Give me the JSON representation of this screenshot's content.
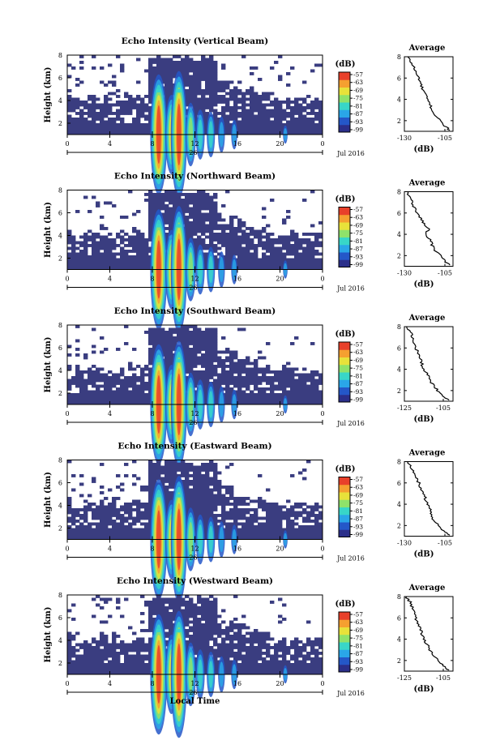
{
  "chart_data": [
    {
      "type": "heatmap",
      "title": "Echo Intensity (Vertical Beam)",
      "ylabel": "Height (km)",
      "xlim": [
        0,
        24
      ],
      "ylim": [
        1,
        8
      ],
      "x_ticks": [
        "0",
        "4",
        "8",
        "12",
        "16",
        "20",
        "0"
      ],
      "y_ticks": [
        "2",
        "4",
        "6",
        "8"
      ],
      "date_label": "26",
      "month_label": "Jul 2016",
      "colorbar": {
        "label": "(dB)",
        "ticks": [
          "-57",
          "-63",
          "-69",
          "-75",
          "-81",
          "-87",
          "-93",
          "-99"
        ]
      },
      "average_profile": {
        "title": "Average",
        "xlabel": "(dB)",
        "x_ticks": [
          "-130",
          "-105"
        ],
        "y_ticks": [
          "2",
          "4",
          "6",
          "8"
        ],
        "xlim": [
          -130,
          -100
        ],
        "points": [
          [
            -128,
            8
          ],
          [
            -126,
            7.5
          ],
          [
            -124,
            7
          ],
          [
            -123,
            6.5
          ],
          [
            -121,
            6
          ],
          [
            -120,
            5.5
          ],
          [
            -119,
            5
          ],
          [
            -117,
            4.5
          ],
          [
            -116,
            4
          ],
          [
            -114,
            3.5
          ],
          [
            -113,
            3
          ],
          [
            -111,
            2.5
          ],
          [
            -108,
            2
          ],
          [
            -105,
            1.5
          ],
          [
            -102,
            1.1
          ]
        ]
      }
    },
    {
      "type": "heatmap",
      "title": "Echo Intensity (Northward Beam)",
      "ylabel": "Height (km)",
      "xlim": [
        0,
        24
      ],
      "ylim": [
        1,
        8
      ],
      "x_ticks": [
        "0",
        "4",
        "8",
        "12",
        "16",
        "20",
        "0"
      ],
      "y_ticks": [
        "2",
        "4",
        "6",
        "8"
      ],
      "date_label": "26",
      "month_label": "Jul 2016",
      "colorbar": {
        "label": "(dB)",
        "ticks": [
          "-57",
          "-63",
          "-69",
          "-75",
          "-81",
          "-87",
          "-93",
          "-99"
        ]
      },
      "average_profile": {
        "title": "Average",
        "xlabel": "(dB)",
        "x_ticks": [
          "-130",
          "-105"
        ],
        "y_ticks": [
          "2",
          "4",
          "6",
          "8"
        ],
        "xlim": [
          -130,
          -100
        ],
        "points": [
          [
            -128,
            8
          ],
          [
            -127,
            7.5
          ],
          [
            -125,
            7
          ],
          [
            -124,
            6.5
          ],
          [
            -122,
            6
          ],
          [
            -120,
            5.5
          ],
          [
            -118,
            5
          ],
          [
            -115,
            4.5
          ],
          [
            -117,
            4
          ],
          [
            -114,
            3.5
          ],
          [
            -113,
            3
          ],
          [
            -111,
            2.5
          ],
          [
            -108,
            2
          ],
          [
            -105,
            1.5
          ],
          [
            -102,
            1.1
          ]
        ]
      }
    },
    {
      "type": "heatmap",
      "title": "Echo Intensity (Southward Beam)",
      "ylabel": "Height (km)",
      "xlim": [
        0,
        24
      ],
      "ylim": [
        1,
        8
      ],
      "x_ticks": [
        "0",
        "4",
        "8",
        "12",
        "16",
        "20",
        "0"
      ],
      "y_ticks": [
        "2",
        "4",
        "6",
        "8"
      ],
      "date_label": "26",
      "month_label": "Jul 2016",
      "colorbar": {
        "label": "(dB)",
        "ticks": [
          "-57",
          "-63",
          "-69",
          "-75",
          "-81",
          "-87",
          "-93",
          "-99"
        ]
      },
      "average_profile": {
        "title": "Average",
        "xlabel": "(dB)",
        "x_ticks": [
          "-125",
          "-105"
        ],
        "y_ticks": [
          "2",
          "4",
          "6",
          "8"
        ],
        "xlim": [
          -125,
          -100
        ],
        "points": [
          [
            -124,
            8
          ],
          [
            -122,
            7.5
          ],
          [
            -121,
            7
          ],
          [
            -120,
            6.5
          ],
          [
            -119,
            6
          ],
          [
            -118,
            5.5
          ],
          [
            -117,
            5
          ],
          [
            -116,
            4.5
          ],
          [
            -115,
            4
          ],
          [
            -113,
            3.5
          ],
          [
            -112,
            3
          ],
          [
            -110,
            2.5
          ],
          [
            -108,
            2
          ],
          [
            -105,
            1.5
          ],
          [
            -102,
            1.1
          ]
        ]
      }
    },
    {
      "type": "heatmap",
      "title": "Echo Intensity (Eastward Beam)",
      "ylabel": "Height (km)",
      "xlim": [
        0,
        24
      ],
      "ylim": [
        1,
        8
      ],
      "x_ticks": [
        "0",
        "4",
        "8",
        "12",
        "16",
        "20",
        "0"
      ],
      "y_ticks": [
        "2",
        "4",
        "6",
        "8"
      ],
      "date_label": "26",
      "month_label": "Jul 2016",
      "colorbar": {
        "label": "(dB)",
        "ticks": [
          "-57",
          "-63",
          "-69",
          "-75",
          "-81",
          "-87",
          "-93",
          "-99"
        ]
      },
      "average_profile": {
        "title": "Average",
        "xlabel": "(dB)",
        "x_ticks": [
          "-130",
          "-105"
        ],
        "y_ticks": [
          "2",
          "4",
          "6",
          "8"
        ],
        "xlim": [
          -130,
          -100
        ],
        "points": [
          [
            -128,
            8
          ],
          [
            -126,
            7.5
          ],
          [
            -124,
            7
          ],
          [
            -123,
            6.5
          ],
          [
            -121,
            6
          ],
          [
            -120,
            5.5
          ],
          [
            -118,
            5
          ],
          [
            -117,
            4.5
          ],
          [
            -116,
            4
          ],
          [
            -114,
            3.5
          ],
          [
            -113,
            3
          ],
          [
            -112,
            2.5
          ],
          [
            -109,
            2
          ],
          [
            -106,
            1.5
          ],
          [
            -102,
            1.1
          ]
        ]
      }
    },
    {
      "type": "heatmap",
      "title": "Echo Intensity (Westward Beam)",
      "ylabel": "Height (km)",
      "xlim": [
        0,
        24
      ],
      "ylim": [
        1,
        8
      ],
      "x_ticks": [
        "0",
        "4",
        "8",
        "12",
        "16",
        "20",
        "0"
      ],
      "y_ticks": [
        "2",
        "4",
        "6",
        "8"
      ],
      "date_label": "26",
      "month_label": "Jul 2016",
      "xlabel": "Local Time",
      "colorbar": {
        "label": "(dB)",
        "ticks": [
          "-57",
          "-63",
          "-69",
          "-75",
          "-81",
          "-87",
          "-93",
          "-99"
        ]
      },
      "average_profile": {
        "title": "Average",
        "xlabel": "(dB)",
        "x_ticks": [
          "-125",
          "-105"
        ],
        "y_ticks": [
          "2",
          "4",
          "6",
          "8"
        ],
        "xlim": [
          -125,
          -100
        ],
        "points": [
          [
            -124,
            8
          ],
          [
            -122,
            7.5
          ],
          [
            -121,
            7
          ],
          [
            -120,
            6.5
          ],
          [
            -119,
            6
          ],
          [
            -118,
            5.5
          ],
          [
            -117,
            5
          ],
          [
            -116,
            4.5
          ],
          [
            -115,
            4
          ],
          [
            -113,
            3.5
          ],
          [
            -112,
            3
          ],
          [
            -110,
            2.5
          ],
          [
            -108,
            2
          ],
          [
            -105,
            1.5
          ],
          [
            -102,
            1.1
          ]
        ]
      }
    }
  ],
  "colors": {
    "background_echo": "#3a3d80",
    "colormap": [
      "#2b2f8a",
      "#2457c8",
      "#2aa6e8",
      "#38d6c8",
      "#8fe26a",
      "#e8e23a",
      "#f5a030",
      "#e8402a"
    ]
  }
}
